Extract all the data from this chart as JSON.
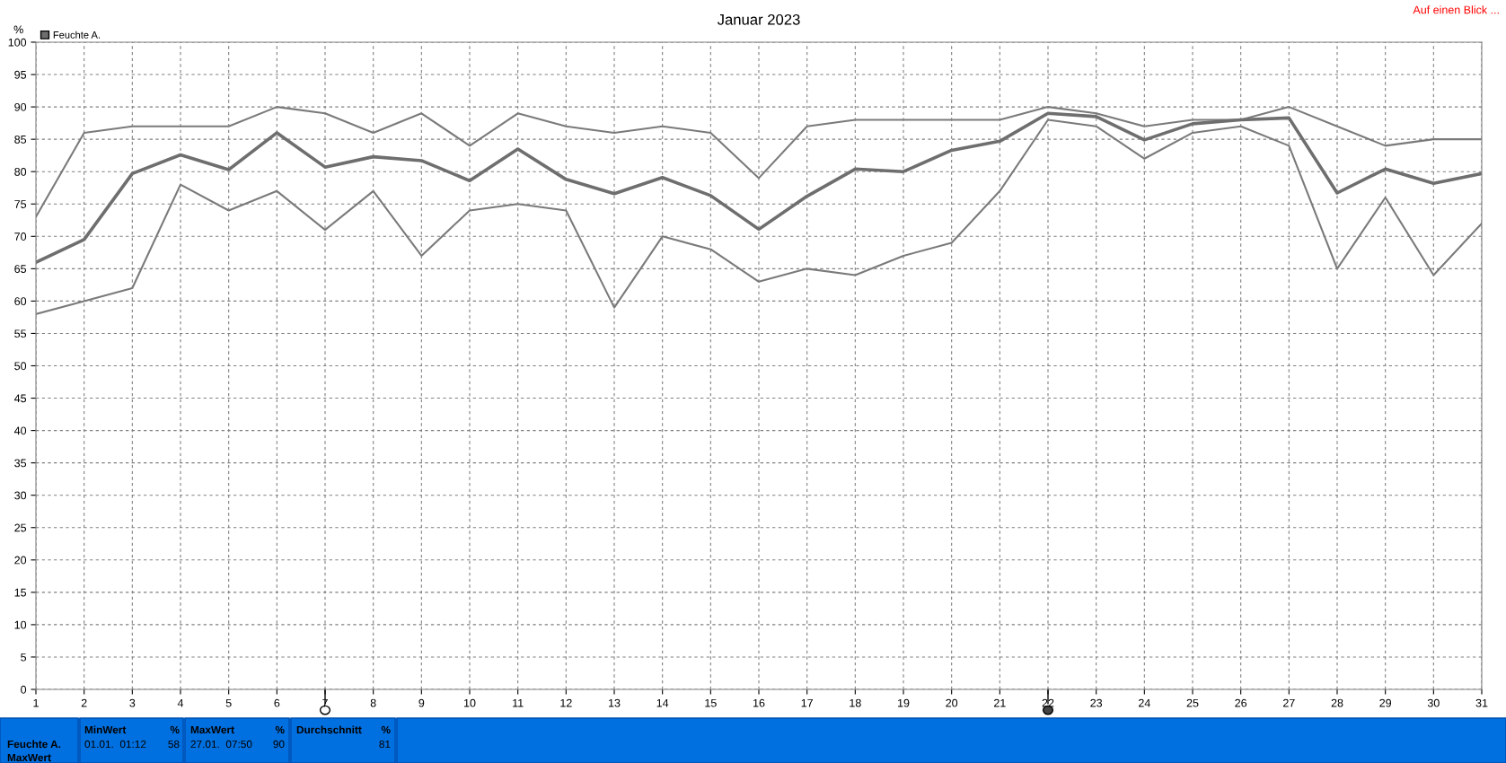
{
  "chart_data": {
    "type": "line",
    "title": "Januar 2023",
    "ylabel": "%",
    "x": [
      1,
      2,
      3,
      4,
      5,
      6,
      7,
      8,
      9,
      10,
      11,
      12,
      13,
      14,
      15,
      16,
      17,
      18,
      19,
      20,
      21,
      22,
      23,
      24,
      25,
      26,
      27,
      28,
      29,
      30,
      31
    ],
    "series": [
      {
        "color": "#7a7a7a",
        "values": [
          73,
          86,
          87,
          87,
          87,
          90,
          89,
          86,
          89,
          84,
          89,
          87,
          86,
          87,
          86,
          79,
          87,
          88,
          88,
          88,
          88,
          90,
          89,
          87,
          88,
          88,
          90,
          87,
          84,
          85,
          85
        ]
      },
      {
        "name": "Feuchte A.",
        "color": "#6e6e6e",
        "values": [
          66,
          69.5,
          79.7,
          82.6,
          80.3,
          86,
          80.7,
          82.3,
          81.7,
          78.6,
          83.5,
          78.8,
          76.6,
          79.1,
          76.3,
          71.1,
          76.2,
          80.4,
          80,
          83.3,
          84.7,
          89,
          88.5,
          84.9,
          87.4,
          88,
          88.3,
          76.7,
          80.4,
          78.2,
          79.7
        ]
      },
      {
        "color": "#7a7a7a",
        "values": [
          58,
          60,
          62,
          78,
          74,
          77,
          71,
          77,
          67,
          74,
          75,
          74,
          59,
          70,
          68,
          63,
          65,
          64,
          67,
          69,
          77,
          88,
          87,
          82,
          86,
          87,
          84,
          65,
          76,
          64,
          72
        ]
      }
    ],
    "xlim": [
      1,
      31
    ],
    "xticks": [
      1,
      2,
      3,
      4,
      5,
      6,
      7,
      8,
      9,
      10,
      11,
      12,
      13,
      14,
      15,
      16,
      17,
      18,
      19,
      20,
      21,
      22,
      23,
      24,
      25,
      26,
      27,
      28,
      29,
      30,
      31
    ],
    "ylim": [
      0,
      100
    ],
    "yticks": [
      0,
      5,
      10,
      15,
      20,
      25,
      30,
      35,
      40,
      45,
      50,
      55,
      60,
      65,
      70,
      75,
      80,
      85,
      90,
      95,
      100
    ],
    "grid": true,
    "legend": "top left",
    "marker": "none",
    "line_style": "solid",
    "annotations": [
      "Auf einen Blick ...",
      "Feuchte A.",
      "MaxWert",
      "MinWert",
      "%",
      "01.01.  01:12",
      "58",
      "MaxWert",
      "%",
      "27.01.  07:50",
      "90",
      "Durchschnitt",
      "%",
      "81"
    ]
  }
}
